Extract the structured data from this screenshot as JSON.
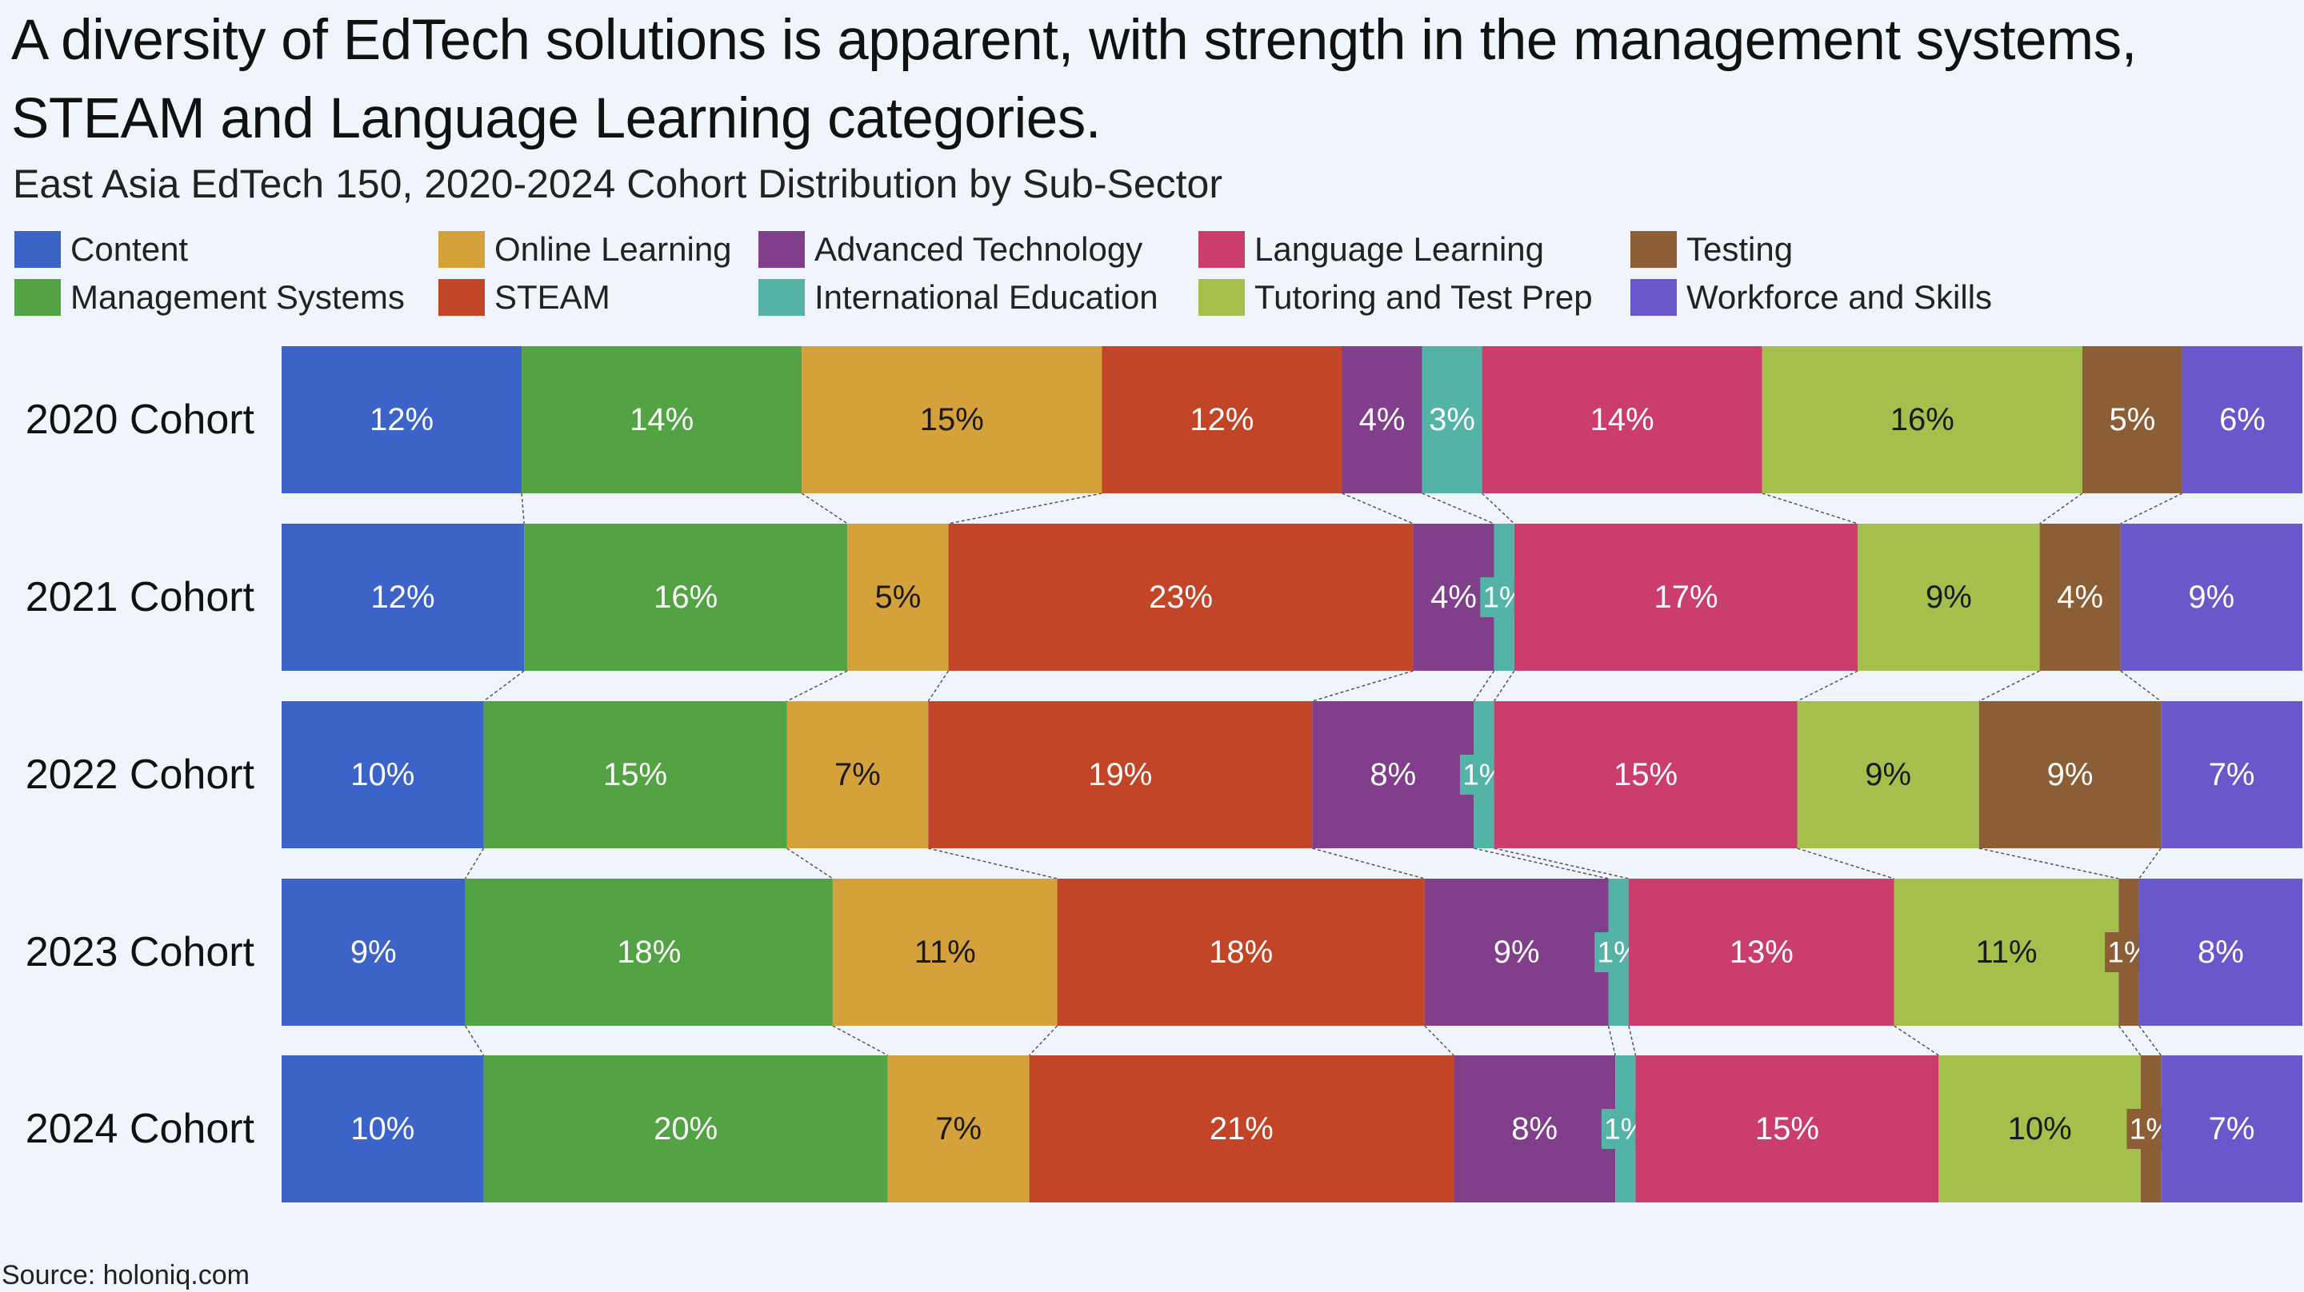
{
  "title": "A diversity of EdTech solutions is apparent, with strength in the management systems, STEAM and Language Learning categories.",
  "subtitle": "East Asia EdTech 150, 2020-2024 Cohort Distribution by Sub-Sector",
  "source": "Source: holoniq.com",
  "chart_data": {
    "type": "bar",
    "orientation": "horizontal",
    "stacked": "100%",
    "categories": [
      "2020 Cohort",
      "2021 Cohort",
      "2022 Cohort",
      "2023 Cohort",
      "2024 Cohort"
    ],
    "xlim": [
      0,
      100
    ],
    "grid": false,
    "legend_position": "top",
    "series": [
      {
        "name": "Content",
        "color": "#3b63c8",
        "values": [
          12,
          12,
          10,
          9,
          10
        ]
      },
      {
        "name": "Management Systems",
        "color": "#53a244",
        "values": [
          14,
          16,
          15,
          18,
          20
        ]
      },
      {
        "name": "Online Learning",
        "color": "#d4a13a",
        "values": [
          15,
          5,
          7,
          11,
          7
        ]
      },
      {
        "name": "STEAM",
        "color": "#c14526",
        "values": [
          12,
          23,
          19,
          18,
          21
        ]
      },
      {
        "name": "Advanced Technology",
        "color": "#813e8a",
        "values": [
          4,
          4,
          8,
          9,
          8
        ]
      },
      {
        "name": "International Education",
        "color": "#52b3a6",
        "values": [
          3,
          1,
          1,
          1,
          1
        ]
      },
      {
        "name": "Language Learning",
        "color": "#cb3d6c",
        "values": [
          14,
          17,
          15,
          13,
          15
        ]
      },
      {
        "name": "Tutoring and Test Prep",
        "color": "#a4bf4c",
        "values": [
          16,
          9,
          9,
          11,
          10
        ]
      },
      {
        "name": "Testing",
        "color": "#8b5e35",
        "values": [
          5,
          4,
          9,
          1,
          1
        ]
      },
      {
        "name": "Workforce and Skills",
        "color": "#6b57cc",
        "values": [
          6,
          9,
          7,
          8,
          7
        ]
      }
    ]
  }
}
